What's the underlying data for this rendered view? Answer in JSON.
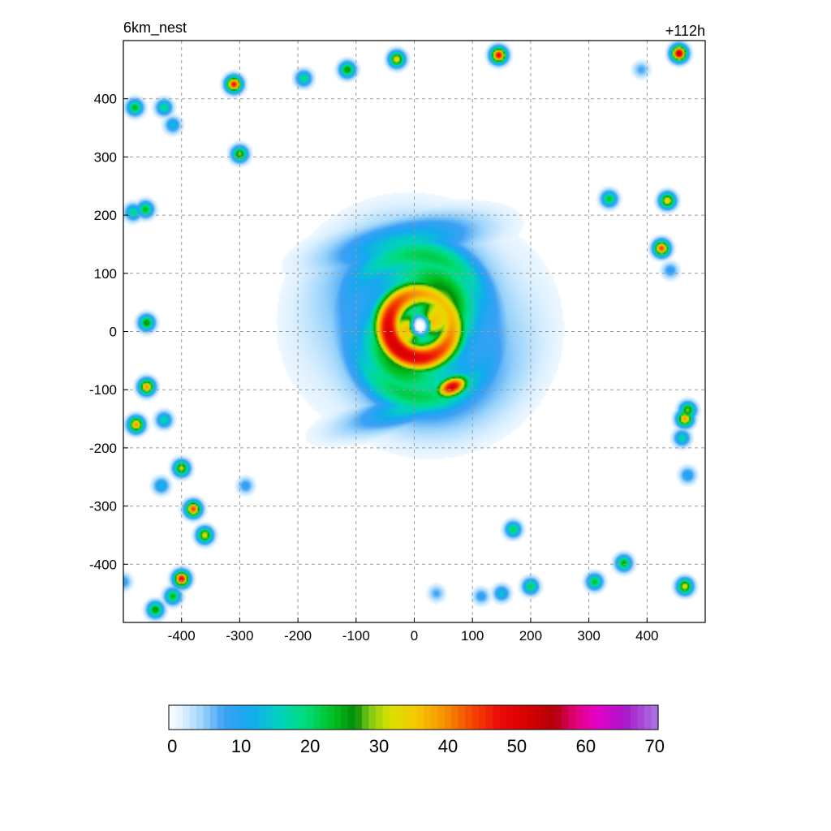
{
  "chart_data": {
    "type": "heatmap",
    "title_left": "6km_nest",
    "title_right": "+112h",
    "xlim": [
      -500,
      500
    ],
    "ylim": [
      -500,
      500
    ],
    "xticks": [
      -400,
      -300,
      -200,
      -100,
      0,
      100,
      200,
      300,
      400
    ],
    "yticks": [
      400,
      300,
      200,
      100,
      0,
      -100,
      -200,
      -300,
      -400
    ],
    "grid": true,
    "colorbar": {
      "min": 0,
      "max": 71,
      "ticks": [
        0,
        10,
        20,
        30,
        40,
        50,
        60,
        70
      ],
      "placement": "bottom"
    },
    "features": {
      "cyclone_center": [
        10,
        10
      ],
      "eye_radius": 20,
      "eyewall_max_value": 52,
      "rainband_max_value": 50
    },
    "cells": [
      {
        "x": -310,
        "y": 425,
        "v": 48
      },
      {
        "x": -480,
        "y": 385,
        "v": 25
      },
      {
        "x": -430,
        "y": 385,
        "v": 20
      },
      {
        "x": -415,
        "y": 355,
        "v": 14
      },
      {
        "x": -300,
        "y": 305,
        "v": 30
      },
      {
        "x": -190,
        "y": 435,
        "v": 20
      },
      {
        "x": -115,
        "y": 450,
        "v": 28
      },
      {
        "x": -30,
        "y": 468,
        "v": 35
      },
      {
        "x": 145,
        "y": 475,
        "v": 50
      },
      {
        "x": 455,
        "y": 478,
        "v": 55
      },
      {
        "x": 335,
        "y": 228,
        "v": 24
      },
      {
        "x": 435,
        "y": 225,
        "v": 36
      },
      {
        "x": 425,
        "y": 143,
        "v": 45
      },
      {
        "x": -483,
        "y": 205,
        "v": 20
      },
      {
        "x": -462,
        "y": 210,
        "v": 25
      },
      {
        "x": -460,
        "y": 15,
        "v": 28
      },
      {
        "x": -460,
        "y": -95,
        "v": 40
      },
      {
        "x": -478,
        "y": -160,
        "v": 40
      },
      {
        "x": -430,
        "y": -152,
        "v": 18
      },
      {
        "x": -400,
        "y": -235,
        "v": 32
      },
      {
        "x": -435,
        "y": -265,
        "v": 14
      },
      {
        "x": -380,
        "y": -305,
        "v": 45
      },
      {
        "x": -360,
        "y": -350,
        "v": 34
      },
      {
        "x": -400,
        "y": -425,
        "v": 50
      },
      {
        "x": -415,
        "y": -455,
        "v": 25
      },
      {
        "x": -445,
        "y": -478,
        "v": 28
      },
      {
        "x": 170,
        "y": -340,
        "v": 22
      },
      {
        "x": 360,
        "y": -398,
        "v": 26
      },
      {
        "x": 310,
        "y": -430,
        "v": 24
      },
      {
        "x": 200,
        "y": -438,
        "v": 22
      },
      {
        "x": 465,
        "y": -438,
        "v": 34
      },
      {
        "x": 465,
        "y": -150,
        "v": 40
      },
      {
        "x": 470,
        "y": -135,
        "v": 30
      },
      {
        "x": 460,
        "y": -183,
        "v": 18
      },
      {
        "x": 470,
        "y": -247,
        "v": 12
      },
      {
        "x": 150,
        "y": -450,
        "v": 15
      },
      {
        "x": 115,
        "y": -455,
        "v": 10
      },
      {
        "x": 38,
        "y": -450,
        "v": 8
      },
      {
        "x": -290,
        "y": -265,
        "v": 10
      },
      {
        "x": 440,
        "y": 105,
        "v": 10
      },
      {
        "x": 390,
        "y": 450,
        "v": 8
      },
      {
        "x": -500,
        "y": -430,
        "v": 10
      }
    ]
  }
}
